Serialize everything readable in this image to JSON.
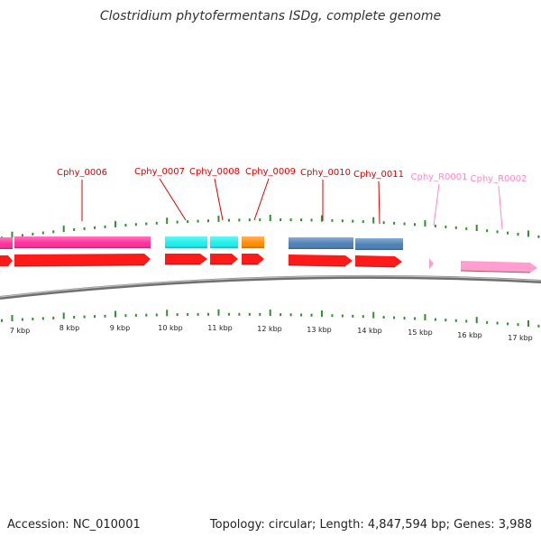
{
  "title": "Clostridium phytofermentans ISDg, complete genome",
  "footer": {
    "accession": "Accession: NC_010001",
    "topology": "Topology: circular; Length: 4,847,594 bp; Genes: 3,988"
  },
  "colors": {
    "cds_red": "#ff1a1a",
    "cds_pink": "#ff2d9b",
    "cds_cyan": "#19f0ee",
    "cds_orange": "#ff8c00",
    "cds_steel": "#4a7fb5",
    "rrna_pink": "#ff9fd0",
    "label_red": "#dd0000",
    "label_pink": "#ff88c8",
    "tick_green": "#2f8f2f",
    "backbone": "#8a8a8a"
  },
  "scale": {
    "ticks": [
      "7 kbp",
      "8 kbp",
      "9 kbp",
      "10 kbp",
      "11 kbp",
      "12 kbp",
      "13 kbp",
      "14 kbp",
      "15 kbp",
      "16 kbp",
      "17 kbp"
    ]
  },
  "gene_labels": [
    {
      "name": "Cphy_0006",
      "kind": "cds"
    },
    {
      "name": "Cphy_0007",
      "kind": "cds"
    },
    {
      "name": "Cphy_0008",
      "kind": "cds"
    },
    {
      "name": "Cphy_0009",
      "kind": "cds"
    },
    {
      "name": "Cphy_0010",
      "kind": "cds"
    },
    {
      "name": "Cphy_0011",
      "kind": "cds"
    },
    {
      "name": "Cphy_R0001",
      "kind": "rrna"
    },
    {
      "name": "Cphy_R0002",
      "kind": "rrna"
    }
  ]
}
